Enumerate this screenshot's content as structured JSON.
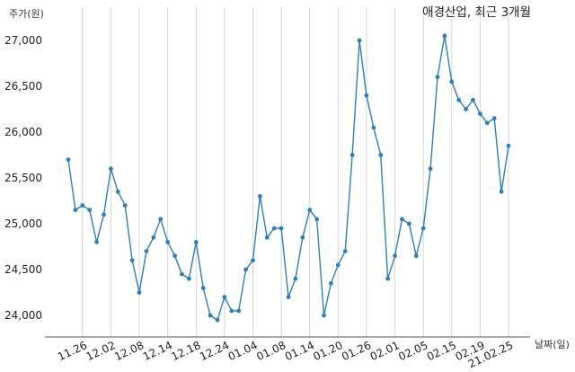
{
  "chart_data": {
    "type": "line",
    "title": "애경산업, 최근 3개월",
    "ylabel": "주가(원)",
    "xlabel": "날짜(일)",
    "ylim": [
      23800,
      27200
    ],
    "yticks": [
      24000,
      24500,
      25000,
      25500,
      26000,
      26500,
      27000
    ],
    "ytick_labels": [
      "24,000",
      "24,500",
      "25,000",
      "25,500",
      "26,000",
      "26,500",
      "27,000"
    ],
    "xticks": [
      {
        "index": 2,
        "label": "11.26"
      },
      {
        "index": 6,
        "label": "12.02"
      },
      {
        "index": 10,
        "label": "12.08"
      },
      {
        "index": 14,
        "label": "12.14"
      },
      {
        "index": 18,
        "label": "12.18"
      },
      {
        "index": 22,
        "label": "12.24"
      },
      {
        "index": 26,
        "label": "01.04"
      },
      {
        "index": 30,
        "label": "01.08"
      },
      {
        "index": 34,
        "label": "01.14"
      },
      {
        "index": 38,
        "label": "01.20"
      },
      {
        "index": 42,
        "label": "01.26"
      },
      {
        "index": 46,
        "label": "02.01"
      },
      {
        "index": 50,
        "label": "02.05"
      },
      {
        "index": 54,
        "label": "02.15"
      },
      {
        "index": 58,
        "label": "02.19"
      },
      {
        "index": 62,
        "label": "21.02.25"
      }
    ],
    "grid": "vertical",
    "color": "#2f7fb8",
    "series": [
      {
        "values": [
          25700,
          25150,
          25200,
          25150,
          24800,
          25100,
          25600,
          25350,
          25200,
          24600,
          24250,
          24700,
          24850,
          25050,
          24800,
          24650,
          24450,
          24400,
          24800,
          24300,
          24000,
          23950,
          24200,
          24050,
          24050,
          24500,
          24600,
          25300,
          24850,
          24950,
          24950,
          24200,
          24400,
          24850,
          25150,
          25050,
          24000,
          24350,
          24550,
          24700,
          25750,
          27000,
          26400,
          26050,
          25750,
          24400,
          24650,
          25050,
          25000,
          24650,
          24950,
          25600,
          26600,
          27050,
          26550,
          26350,
          26250,
          26350,
          26200,
          26100,
          26150,
          25350,
          25850
        ]
      }
    ]
  }
}
